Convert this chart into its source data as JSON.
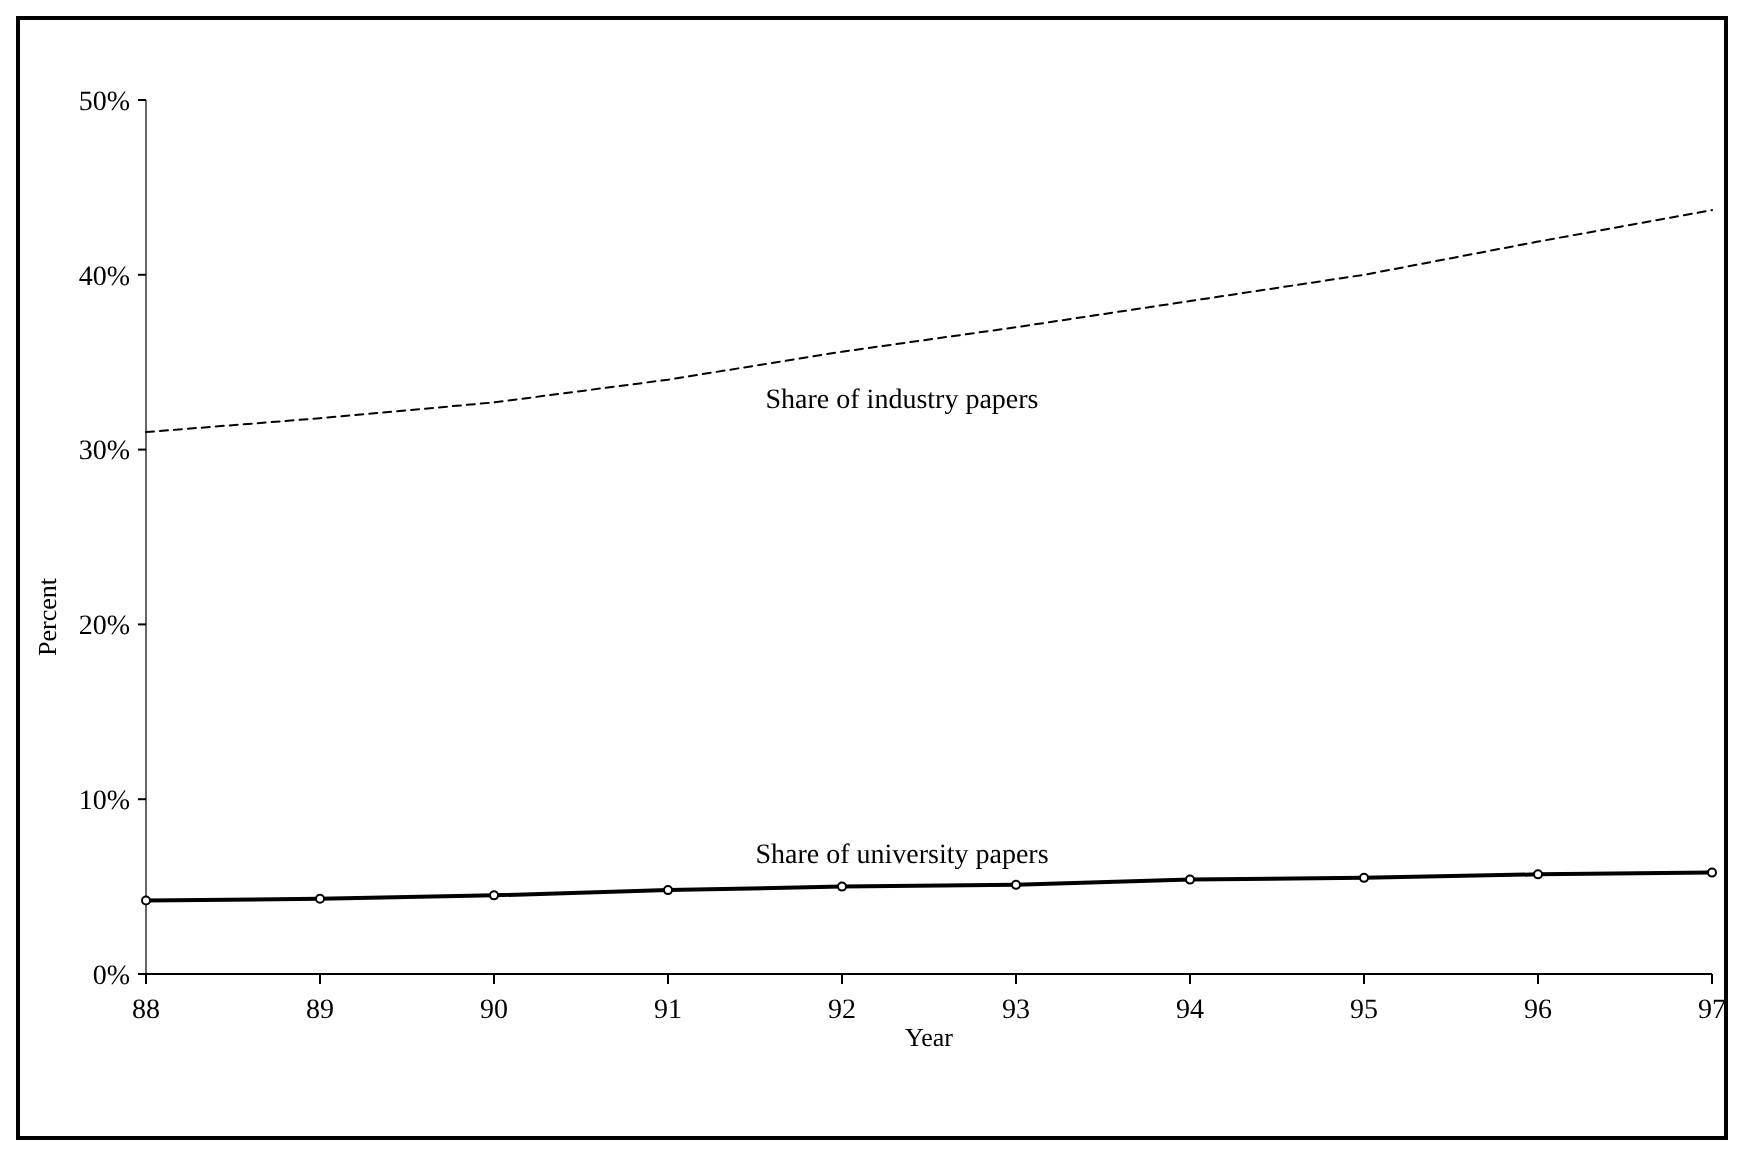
{
  "chart_data": {
    "type": "line",
    "xlabel": "Year",
    "ylabel": "Percent",
    "x": [
      88,
      89,
      90,
      91,
      92,
      93,
      94,
      95,
      96,
      97
    ],
    "xlim": [
      88,
      97
    ],
    "xticks": [
      88,
      89,
      90,
      91,
      92,
      93,
      94,
      95,
      96,
      97
    ],
    "ylim": [
      0,
      50
    ],
    "yticks": [
      {
        "value": 0,
        "label": "0%"
      },
      {
        "value": 10,
        "label": "10%"
      },
      {
        "value": 20,
        "label": "20%"
      },
      {
        "value": 30,
        "label": "30%"
      },
      {
        "value": 40,
        "label": "40%"
      },
      {
        "value": 50,
        "label": "50%"
      }
    ],
    "grid": false,
    "series": [
      {
        "name": "Share of industry papers",
        "color": "#000000",
        "line_style": "dashed",
        "marker": "none",
        "values": [
          31,
          31.8,
          32.7,
          34,
          35.6,
          37,
          38.5,
          40,
          41.9,
          43.7
        ]
      },
      {
        "name": "Share of university papers",
        "color": "#000000",
        "line_style": "solid",
        "marker": "circle",
        "values": [
          4.2,
          4.3,
          4.5,
          4.8,
          5,
          5.1,
          5.4,
          5.5,
          5.7,
          5.8
        ]
      }
    ]
  }
}
